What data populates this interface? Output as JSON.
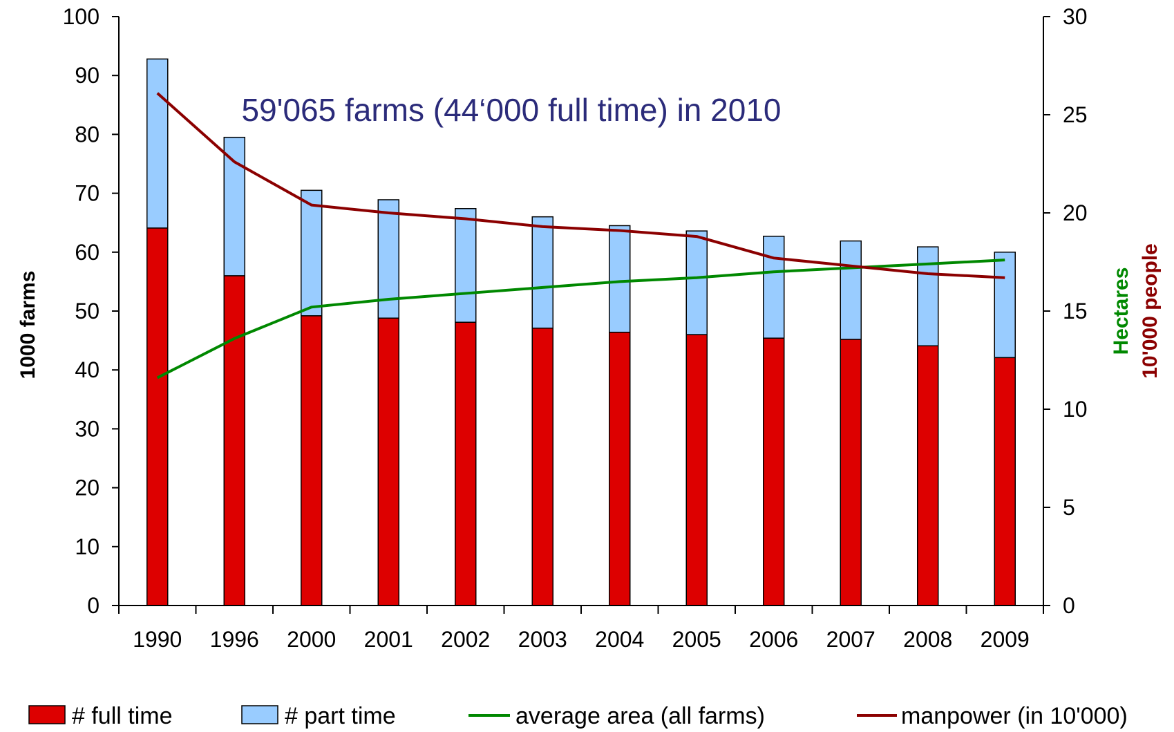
{
  "colors": {
    "full_time": "#dd0000",
    "part_time": "#99ccff",
    "average_area": "#008800",
    "manpower": "#8b0000",
    "annotation": "#2b2b7a",
    "hectares_label": "#008800",
    "people_label": "#8b0000"
  },
  "chart_data": {
    "type": "bar",
    "stacked": true,
    "annotation": "59'065 farms (44‘000 full time) in 2010",
    "categories": [
      "1990",
      "1996",
      "2000",
      "2001",
      "2002",
      "2003",
      "2004",
      "2005",
      "2006",
      "2007",
      "2008",
      "2009"
    ],
    "y_left": {
      "label": "1000 farms",
      "range": [
        0,
        100
      ],
      "ticks": [
        "0",
        "10",
        "20",
        "30",
        "40",
        "50",
        "60",
        "70",
        "80",
        "90",
        "100"
      ]
    },
    "y_right": {
      "label_1": "Hectares",
      "label_2": "10'000 people",
      "range": [
        0,
        30
      ],
      "ticks": [
        "0",
        "5",
        "10",
        "15",
        "20",
        "25",
        "30"
      ]
    },
    "grid": false,
    "legend_position": "bottom",
    "series": [
      {
        "name": "# full time",
        "kind": "bar",
        "axis": "left",
        "values": [
          64.1,
          56.0,
          49.2,
          48.8,
          48.1,
          47.1,
          46.4,
          46.0,
          45.4,
          45.2,
          44.1,
          42.1
        ]
      },
      {
        "name": "# part time",
        "kind": "bar",
        "axis": "left",
        "values": [
          28.7,
          23.5,
          21.3,
          20.1,
          19.3,
          18.9,
          18.1,
          17.6,
          17.3,
          16.7,
          16.8,
          17.9
        ]
      },
      {
        "name": "average area (all farms)",
        "kind": "line",
        "axis": "right",
        "values": [
          11.6,
          13.6,
          15.2,
          15.6,
          15.9,
          16.2,
          16.5,
          16.7,
          17.0,
          17.2,
          17.4,
          17.6
        ]
      },
      {
        "name": "manpower (in 10'000)",
        "kind": "line",
        "axis": "right",
        "values": [
          26.1,
          22.6,
          20.4,
          20.0,
          19.7,
          19.3,
          19.1,
          18.8,
          17.7,
          17.3,
          16.9,
          16.7
        ]
      }
    ]
  }
}
